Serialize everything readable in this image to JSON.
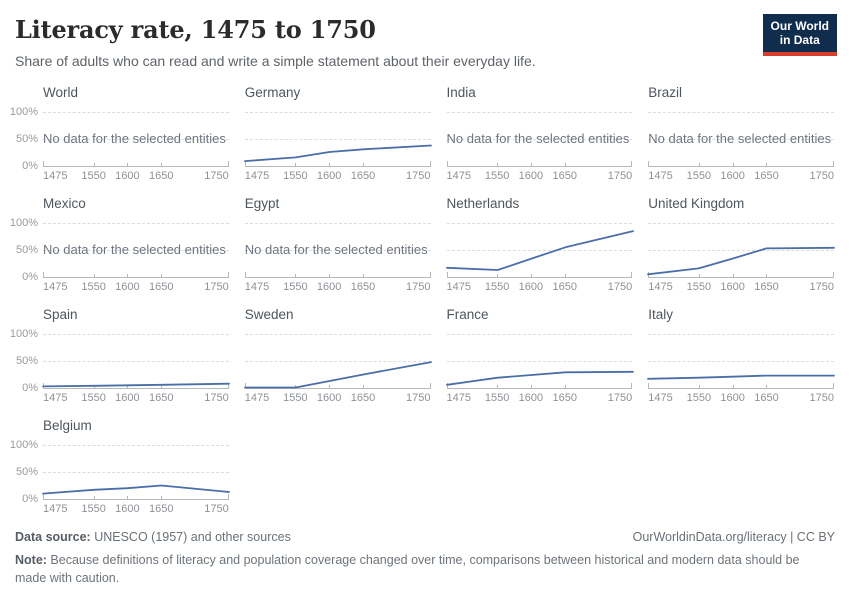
{
  "header": {
    "title": "Literacy rate, 1475 to 1750",
    "subtitle": "Share of adults who can read and write a simple statement about their everyday life.",
    "logo": {
      "line1": "Our World",
      "line2": "in Data"
    }
  },
  "colors": {
    "line": "#4a6fa8",
    "logo_bg": "#102d4e",
    "logo_red": "#d73c2c",
    "gridline": "#dcdcdc",
    "axis": "#b5b9bd"
  },
  "chart_data": {
    "type": "line",
    "x": [
      1475,
      1550,
      1600,
      1650,
      1750
    ],
    "x_ticks": [
      "1475",
      "1550",
      "1600",
      "1650",
      "1750"
    ],
    "y_ticks": [
      "100%",
      "50%",
      "0%"
    ],
    "ylim": [
      0,
      100
    ],
    "xlim": [
      1475,
      1750
    ],
    "grid": "dashed-horizontal",
    "legend": "none",
    "no_data_label": "No data for the selected entities",
    "panels": [
      {
        "name": "World",
        "no_data": true
      },
      {
        "name": "Germany",
        "values": [
          9,
          16,
          26,
          31,
          38
        ]
      },
      {
        "name": "India",
        "no_data": true
      },
      {
        "name": "Brazil",
        "no_data": true
      },
      {
        "name": "Mexico",
        "no_data": true
      },
      {
        "name": "Egypt",
        "no_data": true
      },
      {
        "name": "Netherlands",
        "values": [
          17,
          13,
          34,
          55,
          85
        ]
      },
      {
        "name": "United Kingdom",
        "values": [
          5,
          16,
          34,
          53,
          54
        ]
      },
      {
        "name": "Spain",
        "values": [
          3,
          4,
          5,
          6,
          8
        ]
      },
      {
        "name": "Sweden",
        "values": [
          1,
          1,
          13,
          25,
          48
        ]
      },
      {
        "name": "France",
        "values": [
          6,
          19,
          24,
          29,
          30
        ]
      },
      {
        "name": "Italy",
        "values": [
          17,
          19,
          21,
          23,
          23
        ]
      },
      {
        "name": "Belgium",
        "values": [
          10,
          17,
          20,
          25,
          13
        ]
      }
    ]
  },
  "footer": {
    "source_label": "Data source:",
    "source_text": " UNESCO (1957) and other sources",
    "credit": "OurWorldinData.org/literacy | CC BY",
    "note_label": "Note:",
    "note_text": " Because definitions of literacy and population coverage changed over time, comparisons between historical and modern data should be made with caution."
  }
}
